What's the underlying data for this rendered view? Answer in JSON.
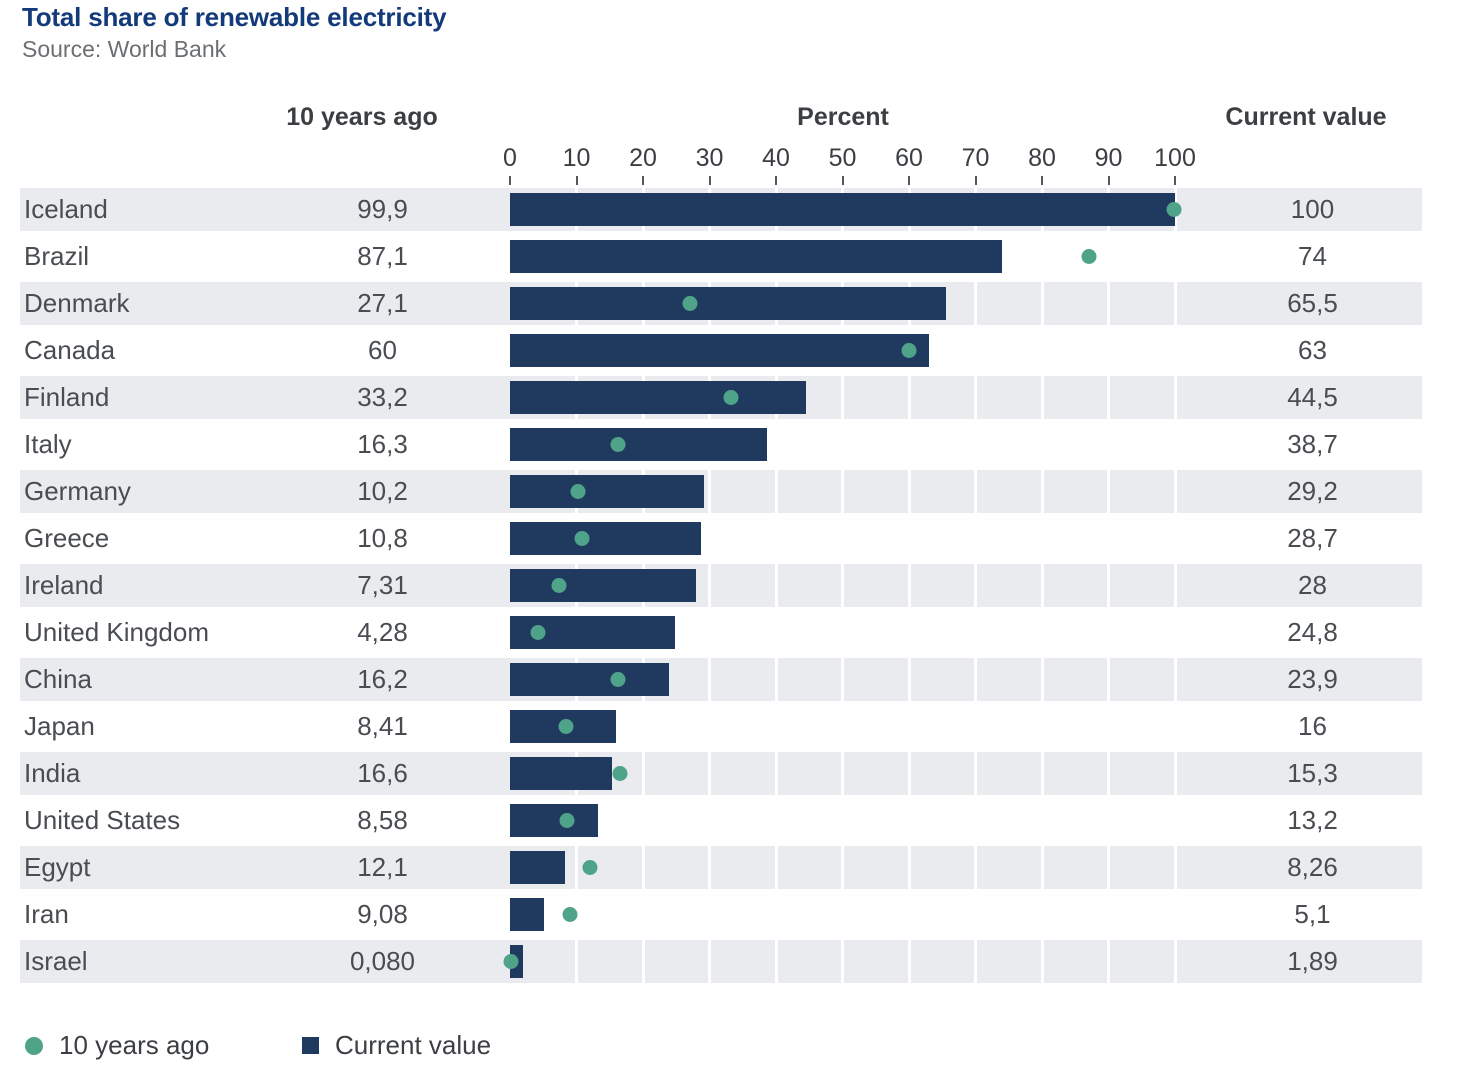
{
  "title": "Total share of renewable electricity",
  "source": "Source: World Bank",
  "column_headers": {
    "ten_years_ago": "10 years ago",
    "percent": "Percent",
    "current_value": "Current value"
  },
  "legend": {
    "ten_years_ago": "10 years ago",
    "current_value": "Current value"
  },
  "colors": {
    "bar": "#1f3a5e",
    "dot": "#4fa389",
    "row_stripe": "#e9ebee",
    "title": "#133a7a"
  },
  "chart_data": {
    "type": "bar",
    "orientation": "horizontal",
    "title": "Total share of renewable electricity",
    "xlabel": "Percent",
    "xlim": [
      0,
      100
    ],
    "x_ticks": [
      0,
      10,
      20,
      30,
      40,
      50,
      60,
      70,
      80,
      90,
      100
    ],
    "grid": true,
    "legend_position": "bottom",
    "categories": [
      "Iceland",
      "Brazil",
      "Denmark",
      "Canada",
      "Finland",
      "Italy",
      "Germany",
      "Greece",
      "Ireland",
      "United Kingdom",
      "China",
      "Japan",
      "India",
      "United States",
      "Egypt",
      "Iran",
      "Israel"
    ],
    "series": [
      {
        "name": "10 years ago",
        "marker": "dot",
        "values": [
          99.9,
          87.1,
          27.1,
          60,
          33.2,
          16.3,
          10.2,
          10.8,
          7.31,
          4.28,
          16.2,
          8.41,
          16.6,
          8.58,
          12.1,
          9.08,
          0.08
        ],
        "display": [
          "99,9",
          "87,1",
          "27,1",
          "60",
          "33,2",
          "16,3",
          "10,2",
          "10,8",
          "7,31",
          "4,28",
          "16,2",
          "8,41",
          "16,6",
          "8,58",
          "12,1",
          "9,08",
          "0,080"
        ]
      },
      {
        "name": "Current value",
        "marker": "bar",
        "values": [
          100,
          74,
          65.5,
          63,
          44.5,
          38.7,
          29.2,
          28.7,
          28,
          24.8,
          23.9,
          16,
          15.3,
          13.2,
          8.26,
          5.1,
          1.89
        ],
        "display": [
          "100",
          "74",
          "65,5",
          "63",
          "44,5",
          "38,7",
          "29,2",
          "28,7",
          "28",
          "24,8",
          "23,9",
          "16",
          "15,3",
          "13,2",
          "8,26",
          "5,1",
          "1,89"
        ]
      }
    ]
  }
}
